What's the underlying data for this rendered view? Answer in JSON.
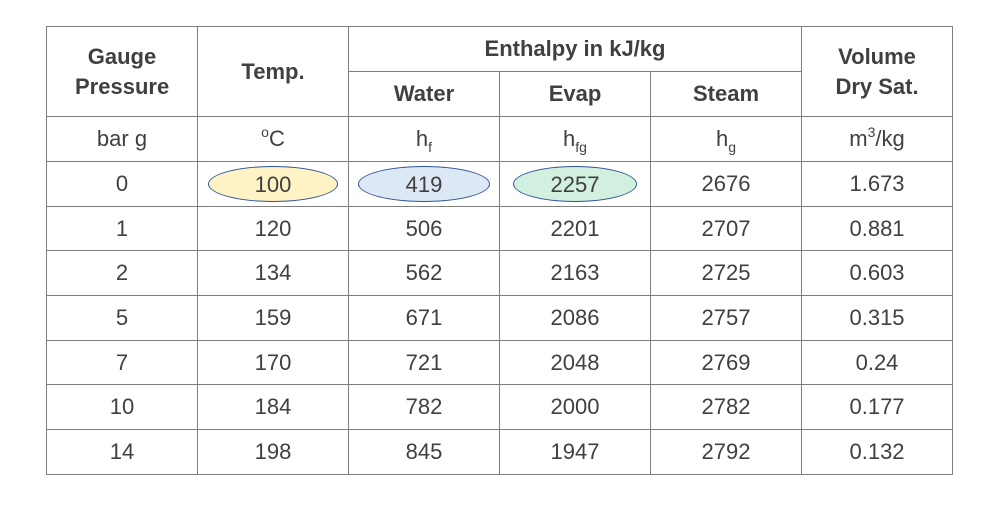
{
  "colors": {
    "border": "#7f7f7f",
    "text": "#404040",
    "highlight_temp": {
      "fill": "#fff2c5",
      "stroke": "#2f5597"
    },
    "highlight_water": {
      "fill": "#dde8f5",
      "stroke": "#2f5597"
    },
    "highlight_evap": {
      "fill": "#d2f0df",
      "stroke": "#2f5597"
    }
  },
  "header": {
    "gauge_pressure": "Gauge Pressure",
    "temp": "Temp.",
    "enthalpy": "Enthalpy in kJ/kg",
    "water": "Water",
    "evap": "Evap",
    "steam": "Steam",
    "volume": "Volume Dry Sat."
  },
  "units": {
    "pressure": "bar g",
    "temp_sup": "o",
    "temp_base": "C",
    "hf_base": "h",
    "hf_sub": "f",
    "hfg_base": "h",
    "hfg_sub": "fg",
    "hg_base": "h",
    "hg_sub": "g",
    "vol_base": "m",
    "vol_sup": "3",
    "vol_tail": "/kg"
  },
  "rows": [
    {
      "pressure": "0",
      "temp": "100",
      "water": "419",
      "evap": "2257",
      "steam": "2676",
      "volume": "1.673"
    },
    {
      "pressure": "1",
      "temp": "120",
      "water": "506",
      "evap": "2201",
      "steam": "2707",
      "volume": "0.881"
    },
    {
      "pressure": "2",
      "temp": "134",
      "water": "562",
      "evap": "2163",
      "steam": "2725",
      "volume": "0.603"
    },
    {
      "pressure": "5",
      "temp": "159",
      "water": "671",
      "evap": "2086",
      "steam": "2757",
      "volume": "0.315"
    },
    {
      "pressure": "7",
      "temp": "170",
      "water": "721",
      "evap": "2048",
      "steam": "2769",
      "volume": "0.24"
    },
    {
      "pressure": "10",
      "temp": "184",
      "water": "782",
      "evap": "2000",
      "steam": "2782",
      "volume": "0.177"
    },
    {
      "pressure": "14",
      "temp": "198",
      "water": "845",
      "evap": "1947",
      "steam": "2792",
      "volume": "0.132"
    }
  ]
}
